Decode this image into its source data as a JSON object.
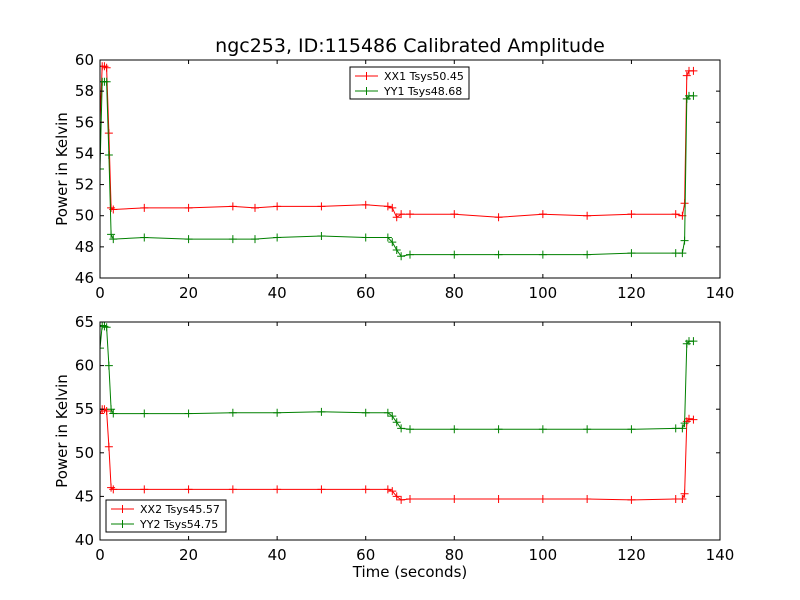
{
  "chart_data": [
    {
      "type": "line",
      "title": "ngc253, ID:115486 Calibrated Amplitude",
      "xlabel": "",
      "ylabel": "Power in Kelvin",
      "xlim": [
        0,
        140
      ],
      "ylim": [
        46,
        60
      ],
      "xticks": [
        0,
        20,
        40,
        60,
        80,
        100,
        120,
        140
      ],
      "yticks": [
        46,
        48,
        50,
        52,
        54,
        56,
        58,
        60
      ],
      "legend_position": "top-center",
      "grid": false,
      "series": [
        {
          "name": "XX1 Tsys50.45",
          "color": "#ff0000",
          "x": [
            0,
            0.5,
            1,
            1.5,
            2,
            2.5,
            3,
            10,
            20,
            30,
            35,
            40,
            50,
            60,
            65,
            66,
            67,
            68,
            70,
            80,
            90,
            100,
            110,
            120,
            130,
            131.5,
            132,
            132.5,
            133,
            134
          ],
          "y": [
            56.0,
            59.6,
            59.6,
            59.5,
            55.3,
            50.5,
            50.4,
            50.5,
            50.5,
            50.6,
            50.5,
            50.6,
            50.6,
            50.7,
            50.6,
            50.5,
            49.9,
            50.1,
            50.1,
            50.1,
            49.9,
            50.1,
            50.0,
            50.1,
            50.1,
            50.0,
            50.8,
            59.0,
            59.3,
            59.3
          ]
        },
        {
          "name": "YY1 Tsys48.68",
          "color": "#008000",
          "x": [
            0,
            0.5,
            1,
            1.5,
            2,
            2.5,
            3,
            10,
            20,
            30,
            35,
            40,
            50,
            60,
            65,
            66,
            67,
            68,
            70,
            80,
            90,
            100,
            110,
            120,
            130,
            131.5,
            132,
            132.5,
            133,
            134
          ],
          "y": [
            53.0,
            58.6,
            58.6,
            58.6,
            53.9,
            48.8,
            48.5,
            48.6,
            48.5,
            48.5,
            48.5,
            48.6,
            48.7,
            48.6,
            48.6,
            48.3,
            47.8,
            47.4,
            47.5,
            47.5,
            47.5,
            47.5,
            47.5,
            47.6,
            47.6,
            47.6,
            48.4,
            57.5,
            57.7,
            57.7
          ]
        }
      ]
    },
    {
      "type": "line",
      "title": "",
      "xlabel": "Time (seconds)",
      "ylabel": "Power in Kelvin",
      "xlim": [
        0,
        140
      ],
      "ylim": [
        40,
        65
      ],
      "xticks": [
        0,
        20,
        40,
        60,
        80,
        100,
        120,
        140
      ],
      "yticks": [
        40,
        45,
        50,
        55,
        60,
        65
      ],
      "legend_position": "bottom-left",
      "grid": false,
      "series": [
        {
          "name": "XX2 Tsys45.57",
          "color": "#ff0000",
          "x": [
            0,
            0.5,
            1,
            1.5,
            2,
            2.5,
            3,
            10,
            20,
            30,
            40,
            50,
            60,
            65,
            66,
            67,
            68,
            70,
            80,
            90,
            100,
            110,
            120,
            130,
            131.5,
            132,
            132.5,
            133,
            134
          ],
          "y": [
            54.5,
            55.0,
            55.0,
            54.8,
            50.7,
            46.0,
            45.8,
            45.8,
            45.8,
            45.8,
            45.8,
            45.8,
            45.8,
            45.8,
            45.6,
            45.0,
            44.6,
            44.7,
            44.7,
            44.7,
            44.7,
            44.7,
            44.6,
            44.7,
            44.7,
            45.3,
            53.6,
            53.9,
            53.8
          ]
        },
        {
          "name": "YY2 Tsys54.75",
          "color": "#008000",
          "x": [
            0,
            0.5,
            1,
            1.5,
            2,
            2.5,
            3,
            10,
            20,
            30,
            40,
            50,
            60,
            65,
            66,
            67,
            68,
            70,
            80,
            90,
            100,
            110,
            120,
            130,
            131.5,
            132,
            132.5,
            133,
            134
          ],
          "y": [
            62.0,
            64.6,
            64.5,
            64.4,
            60.0,
            55.0,
            54.5,
            54.5,
            54.5,
            54.6,
            54.6,
            54.7,
            54.6,
            54.6,
            54.2,
            53.5,
            52.8,
            52.7,
            52.7,
            52.7,
            52.7,
            52.7,
            52.7,
            52.8,
            52.8,
            53.4,
            62.5,
            62.8,
            62.8
          ]
        }
      ]
    }
  ]
}
